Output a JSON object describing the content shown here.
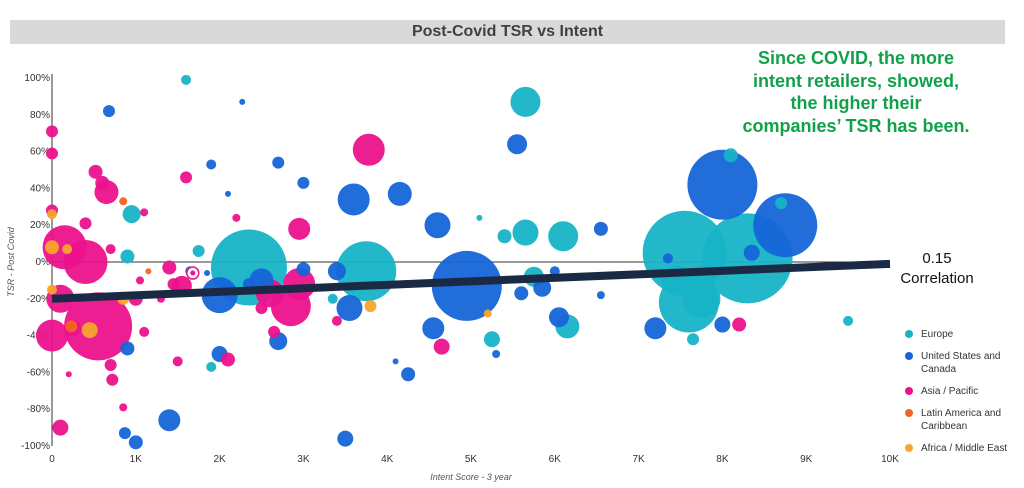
{
  "chart_data": {
    "type": "scatter",
    "title": "Post-Covid TSR vs Intent",
    "xlabel": "Intent Score - 3 year",
    "ylabel": "TSR - Post Covid",
    "xlim": [
      0,
      10000
    ],
    "ylim": [
      -100,
      100
    ],
    "x_ticks": [
      "0",
      "1K",
      "2K",
      "3K",
      "4K",
      "5K",
      "6K",
      "7K",
      "8K",
      "9K",
      "10K"
    ],
    "y_ticks": [
      "100%",
      "80%",
      "60%",
      "40%",
      "20%",
      "0%",
      "-20%",
      "-40%",
      "-60%",
      "-80%",
      "-100%"
    ],
    "legend_position": "bottom-right",
    "grid": false,
    "series": [
      {
        "name": "Europe",
        "color": "#17b3c7",
        "points": [
          {
            "x": 1600,
            "y": 99,
            "r": 5
          },
          {
            "x": 5650,
            "y": 87,
            "r": 15
          },
          {
            "x": 950,
            "y": 26,
            "r": 9
          },
          {
            "x": 900,
            "y": 3,
            "r": 7
          },
          {
            "x": 1750,
            "y": 6,
            "r": 6
          },
          {
            "x": 2350,
            "y": -3,
            "r": 38
          },
          {
            "x": 3750,
            "y": -5,
            "r": 30
          },
          {
            "x": 5650,
            "y": 16,
            "r": 13
          },
          {
            "x": 6100,
            "y": 14,
            "r": 15
          },
          {
            "x": 5400,
            "y": 14,
            "r": 7
          },
          {
            "x": 5100,
            "y": 24,
            "r": 3
          },
          {
            "x": 5750,
            "y": -8,
            "r": 10
          },
          {
            "x": 6150,
            "y": -35,
            "r": 12
          },
          {
            "x": 5250,
            "y": -42,
            "r": 8
          },
          {
            "x": 7550,
            "y": 5,
            "r": 42
          },
          {
            "x": 8300,
            "y": 2,
            "r": 45
          },
          {
            "x": 7750,
            "y": -20,
            "r": 19
          },
          {
            "x": 7600,
            "y": -22,
            "r": 30
          },
          {
            "x": 7450,
            "y": -10,
            "r": 15
          },
          {
            "x": 8100,
            "y": 58,
            "r": 7
          },
          {
            "x": 7650,
            "y": -42,
            "r": 6
          },
          {
            "x": 9500,
            "y": -32,
            "r": 5
          },
          {
            "x": 1900,
            "y": -57,
            "r": 5
          },
          {
            "x": 3350,
            "y": -20,
            "r": 5
          },
          {
            "x": 8700,
            "y": 32,
            "r": 6
          }
        ]
      },
      {
        "name": "United States and Canada",
        "color": "#1565d8",
        "points": [
          {
            "x": 680,
            "y": 82,
            "r": 6
          },
          {
            "x": 2270,
            "y": 87,
            "r": 3
          },
          {
            "x": 1900,
            "y": 53,
            "r": 5
          },
          {
            "x": 2700,
            "y": 54,
            "r": 6
          },
          {
            "x": 3000,
            "y": 43,
            "r": 6
          },
          {
            "x": 2100,
            "y": 37,
            "r": 3
          },
          {
            "x": 3600,
            "y": 34,
            "r": 16
          },
          {
            "x": 4150,
            "y": 37,
            "r": 12
          },
          {
            "x": 4600,
            "y": 20,
            "r": 13
          },
          {
            "x": 5550,
            "y": 64,
            "r": 10
          },
          {
            "x": 6550,
            "y": 18,
            "r": 7
          },
          {
            "x": 4950,
            "y": -13,
            "r": 35
          },
          {
            "x": 3550,
            "y": -25,
            "r": 13
          },
          {
            "x": 2500,
            "y": -10,
            "r": 12
          },
          {
            "x": 2000,
            "y": -18,
            "r": 18
          },
          {
            "x": 2700,
            "y": -43,
            "r": 9
          },
          {
            "x": 2000,
            "y": -50,
            "r": 8
          },
          {
            "x": 4550,
            "y": -36,
            "r": 11
          },
          {
            "x": 4250,
            "y": -61,
            "r": 7
          },
          {
            "x": 4100,
            "y": -54,
            "r": 3
          },
          {
            "x": 5850,
            "y": -14,
            "r": 9
          },
          {
            "x": 5600,
            "y": -17,
            "r": 7
          },
          {
            "x": 6050,
            "y": -30,
            "r": 10
          },
          {
            "x": 6000,
            "y": -5,
            "r": 5
          },
          {
            "x": 7200,
            "y": -36,
            "r": 11
          },
          {
            "x": 8000,
            "y": 42,
            "r": 35
          },
          {
            "x": 8750,
            "y": 20,
            "r": 32
          },
          {
            "x": 8350,
            "y": 5,
            "r": 8
          },
          {
            "x": 8000,
            "y": -34,
            "r": 8
          },
          {
            "x": 7350,
            "y": 2,
            "r": 5
          },
          {
            "x": 3500,
            "y": -96,
            "r": 8
          },
          {
            "x": 1400,
            "y": -86,
            "r": 11
          },
          {
            "x": 1000,
            "y": -98,
            "r": 7
          },
          {
            "x": 870,
            "y": -93,
            "r": 6
          },
          {
            "x": 900,
            "y": -47,
            "r": 7
          },
          {
            "x": 3000,
            "y": -4,
            "r": 7
          },
          {
            "x": 3400,
            "y": -5,
            "r": 9
          },
          {
            "x": 5300,
            "y": -50,
            "r": 4
          },
          {
            "x": 6550,
            "y": -18,
            "r": 4
          },
          {
            "x": 2350,
            "y": -12,
            "r": 6
          },
          {
            "x": 1650,
            "y": -5,
            "r": 5
          },
          {
            "x": 1850,
            "y": -6,
            "r": 3
          }
        ]
      },
      {
        "name": "Asia / Pacific",
        "color": "#ec118c",
        "points": [
          {
            "x": 0,
            "y": 71,
            "r": 6
          },
          {
            "x": 0,
            "y": 59,
            "r": 6
          },
          {
            "x": 150,
            "y": 8,
            "r": 22
          },
          {
            "x": 400,
            "y": 0,
            "r": 22
          },
          {
            "x": 550,
            "y": -35,
            "r": 34
          },
          {
            "x": 0,
            "y": -40,
            "r": 16
          },
          {
            "x": 250,
            "y": -36,
            "r": 8
          },
          {
            "x": 100,
            "y": -20,
            "r": 14
          },
          {
            "x": 650,
            "y": 38,
            "r": 12
          },
          {
            "x": 520,
            "y": 49,
            "r": 7
          },
          {
            "x": 600,
            "y": 43,
            "r": 7
          },
          {
            "x": 400,
            "y": 21,
            "r": 6
          },
          {
            "x": 0,
            "y": 28,
            "r": 6
          },
          {
            "x": 3780,
            "y": 61,
            "r": 16
          },
          {
            "x": 2950,
            "y": 18,
            "r": 11
          },
          {
            "x": 2600,
            "y": -17,
            "r": 14
          },
          {
            "x": 2950,
            "y": -12,
            "r": 16
          },
          {
            "x": 2850,
            "y": -24,
            "r": 20
          },
          {
            "x": 1600,
            "y": 46,
            "r": 6
          },
          {
            "x": 1550,
            "y": -13,
            "r": 10
          },
          {
            "x": 1400,
            "y": -3,
            "r": 7
          },
          {
            "x": 1450,
            "y": -12,
            "r": 6
          },
          {
            "x": 1000,
            "y": -20,
            "r": 7
          },
          {
            "x": 700,
            "y": -56,
            "r": 6
          },
          {
            "x": 720,
            "y": -64,
            "r": 6
          },
          {
            "x": 850,
            "y": -79,
            "r": 4
          },
          {
            "x": 2100,
            "y": -53,
            "r": 7
          },
          {
            "x": 4650,
            "y": -46,
            "r": 8
          },
          {
            "x": 8200,
            "y": -34,
            "r": 7
          },
          {
            "x": 100,
            "y": -90,
            "r": 8
          },
          {
            "x": 1300,
            "y": -20,
            "r": 4
          },
          {
            "x": 1100,
            "y": 27,
            "r": 4
          },
          {
            "x": 700,
            "y": 7,
            "r": 5
          },
          {
            "x": 1100,
            "y": -38,
            "r": 5
          },
          {
            "x": 1500,
            "y": -54,
            "r": 5
          },
          {
            "x": 2500,
            "y": -25,
            "r": 6
          },
          {
            "x": 2650,
            "y": -38,
            "r": 6
          },
          {
            "x": 3400,
            "y": -32,
            "r": 5
          },
          {
            "x": 2200,
            "y": 24,
            "r": 4
          },
          {
            "x": 200,
            "y": -61,
            "r": 3
          },
          {
            "x": 1050,
            "y": -10,
            "r": 4
          }
        ]
      },
      {
        "name": "Latin America and Caribbean",
        "color": "#f26522",
        "points": [
          {
            "x": 850,
            "y": 33,
            "r": 4
          },
          {
            "x": 230,
            "y": -35,
            "r": 6
          },
          {
            "x": 1150,
            "y": -5,
            "r": 3
          }
        ]
      },
      {
        "name": "Africa / Middle East",
        "color": "#f8a52d",
        "points": [
          {
            "x": 0,
            "y": 26,
            "r": 5
          },
          {
            "x": 0,
            "y": 8,
            "r": 7
          },
          {
            "x": 180,
            "y": 7,
            "r": 5
          },
          {
            "x": 0,
            "y": -15,
            "r": 5
          },
          {
            "x": 450,
            "y": -37,
            "r": 8
          },
          {
            "x": 850,
            "y": -20,
            "r": 6
          },
          {
            "x": 3800,
            "y": -24,
            "r": 6
          },
          {
            "x": 5200,
            "y": -28,
            "r": 4
          }
        ]
      }
    ],
    "trendline": {
      "x0": 0,
      "y0": -20,
      "x1": 10000,
      "y1": -1,
      "color": "#1b2a44"
    },
    "highlight_point": {
      "x": 1680,
      "y": -6,
      "color": "#ec118c"
    },
    "annotation": "Since COVID, the more intent retailers, showed, the higher their companies’ TSR has been.",
    "annotation_color": "#12a14b",
    "correlation_value": "0.15",
    "correlation_label": "Correlation"
  },
  "legend": [
    {
      "label": "Europe",
      "color": "#17b3c7"
    },
    {
      "label": "United States and Canada",
      "color": "#1565d8"
    },
    {
      "label": "Asia / Pacific",
      "color": "#ec118c"
    },
    {
      "label": "Latin America and Caribbean",
      "color": "#f26522"
    },
    {
      "label": "Africa / Middle East",
      "color": "#f8a52d"
    }
  ]
}
